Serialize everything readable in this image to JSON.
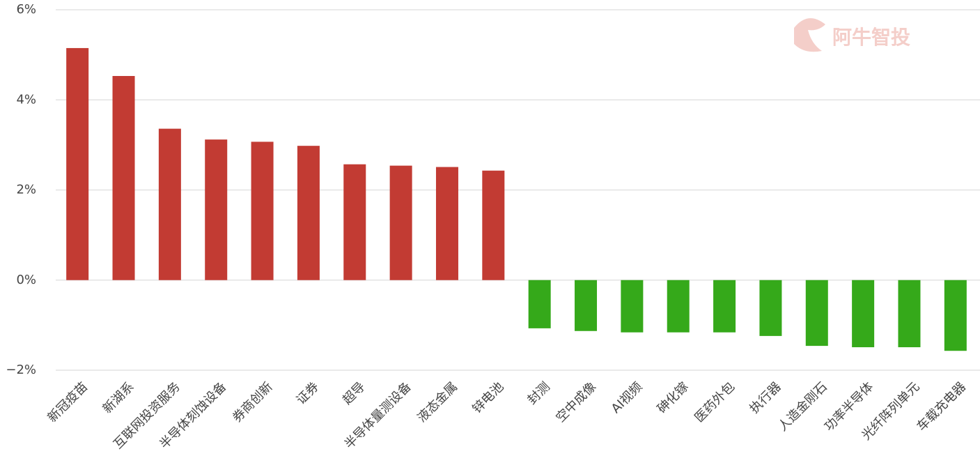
{
  "chart_data": {
    "type": "bar",
    "watermark": "阿牛智投",
    "categories": [
      "新冠疫苗",
      "新湖系",
      "互联网投资服务",
      "半导体刻蚀设备",
      "券商创新",
      "证券",
      "超导",
      "半导体量测设备",
      "液态金属",
      "锌电池",
      "封测",
      "空中成像",
      "AI视频",
      "砷化镓",
      "医药外包",
      "执行器",
      "人造金刚石",
      "功率半导体",
      "光纤阵列单元",
      "车载充电器"
    ],
    "values": [
      5.15,
      4.53,
      3.36,
      3.12,
      3.07,
      2.98,
      2.57,
      2.54,
      2.51,
      2.43,
      -1.07,
      -1.13,
      -1.16,
      -1.16,
      -1.16,
      -1.24,
      -1.46,
      -1.49,
      -1.49,
      -1.57
    ],
    "positive_color": "#c23b33",
    "negative_color": "#35a91a",
    "ylim": [
      -2,
      6
    ],
    "yticks": [
      {
        "value": -2,
        "label": "−2%"
      },
      {
        "value": 0,
        "label": "0%"
      },
      {
        "value": 2,
        "label": "2%"
      },
      {
        "value": 4,
        "label": "4%"
      },
      {
        "value": 6,
        "label": "6%"
      }
    ],
    "grid": true
  }
}
